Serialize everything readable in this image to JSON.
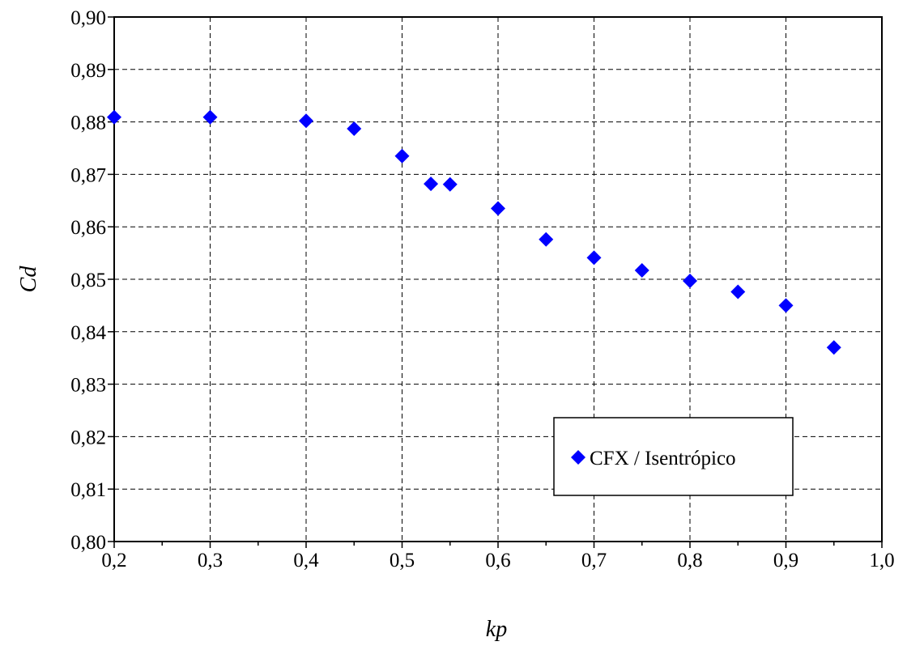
{
  "chart_data": {
    "type": "scatter",
    "xlabel": "kp",
    "ylabel": "Cd",
    "xlim": [
      0.2,
      1.0
    ],
    "ylim": [
      0.8,
      0.9
    ],
    "x_ticks": [
      "0,2",
      "0,3",
      "0,4",
      "0,5",
      "0,6",
      "0,7",
      "0,8",
      "0,9",
      "1,0"
    ],
    "y_ticks": [
      "0,80",
      "0,81",
      "0,82",
      "0,83",
      "0,84",
      "0,85",
      "0,86",
      "0,87",
      "0,88",
      "0,89",
      "0,90"
    ],
    "grid": true,
    "legend_position": "bottom-right",
    "series": [
      {
        "name": "CFX / Isentrópico",
        "color": "#0000ff",
        "marker": "diamond",
        "x": [
          0.2,
          0.3,
          0.4,
          0.45,
          0.5,
          0.53,
          0.55,
          0.6,
          0.65,
          0.7,
          0.75,
          0.8,
          0.85,
          0.9,
          0.95
        ],
        "y": [
          0.8809,
          0.8809,
          0.8802,
          0.8787,
          0.8735,
          0.8682,
          0.8681,
          0.8635,
          0.8576,
          0.8541,
          0.8517,
          0.8497,
          0.8476,
          0.845,
          0.837
        ]
      }
    ]
  }
}
